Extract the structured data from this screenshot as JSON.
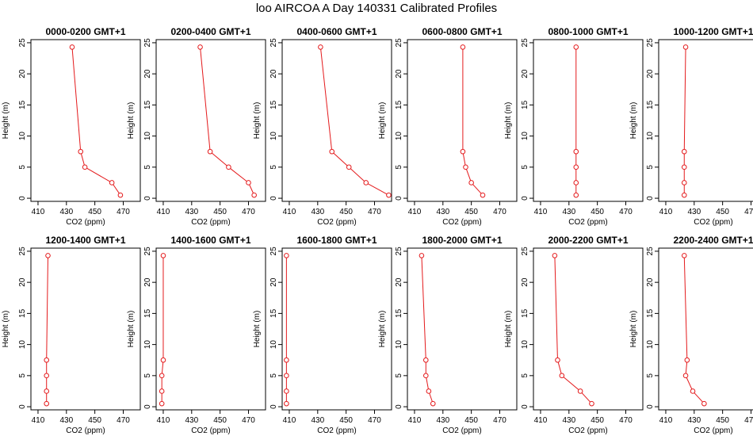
{
  "title": "loo AIRCOA A  Day 140331  Calibrated Profiles",
  "axes": {
    "xlabel": "CO2 (ppm)",
    "ylabel": "Height (m)",
    "xlim": [
      405,
      482
    ],
    "ylim": [
      -0.5,
      25.5
    ],
    "xticks": [
      410,
      430,
      450,
      470
    ],
    "yticks": [
      0,
      5,
      10,
      15,
      20,
      25
    ]
  },
  "colors": {
    "series": "#e41a1c",
    "axis": "#000000"
  },
  "chart_data": [
    {
      "type": "line",
      "title": "0000-0200 GMT+1",
      "x": [
        468,
        462,
        443,
        440,
        434
      ],
      "y": [
        0.5,
        2.5,
        5,
        7.5,
        24.3
      ]
    },
    {
      "type": "line",
      "title": "0200-0400 GMT+1",
      "x": [
        474,
        470,
        456,
        443,
        436
      ],
      "y": [
        0.5,
        2.5,
        5,
        7.5,
        24.3
      ]
    },
    {
      "type": "line",
      "title": "0400-0600 GMT+1",
      "x": [
        480,
        464,
        452,
        440,
        432
      ],
      "y": [
        0.5,
        2.5,
        5,
        7.5,
        24.3
      ]
    },
    {
      "type": "line",
      "title": "0600-0800 GMT+1",
      "x": [
        458,
        450,
        446,
        444,
        444
      ],
      "y": [
        0.5,
        2.5,
        5,
        7.5,
        24.3
      ]
    },
    {
      "type": "line",
      "title": "0800-1000 GMT+1",
      "x": [
        435,
        435,
        435,
        435,
        435
      ],
      "y": [
        0.5,
        2.5,
        5,
        7.5,
        24.3
      ]
    },
    {
      "type": "line",
      "title": "1000-1200 GMT+1",
      "x": [
        423,
        423,
        423,
        423,
        424
      ],
      "y": [
        0.5,
        2.5,
        5,
        7.5,
        24.3
      ]
    },
    {
      "type": "line",
      "title": "1200-1400 GMT+1",
      "x": [
        416,
        416,
        416,
        416,
        417
      ],
      "y": [
        0.5,
        2.5,
        5,
        7.5,
        24.3
      ]
    },
    {
      "type": "line",
      "title": "1400-1600 GMT+1",
      "x": [
        409,
        409,
        409,
        410,
        410
      ],
      "y": [
        0.5,
        2.5,
        5,
        7.5,
        24.3
      ]
    },
    {
      "type": "line",
      "title": "1600-1800 GMT+1",
      "x": [
        408,
        408,
        408,
        408,
        408
      ],
      "y": [
        0.5,
        2.5,
        5,
        7.5,
        24.3
      ]
    },
    {
      "type": "line",
      "title": "1800-2000 GMT+1",
      "x": [
        423,
        420,
        418,
        418,
        415
      ],
      "y": [
        0.5,
        2.5,
        5,
        7.5,
        24.3
      ]
    },
    {
      "type": "line",
      "title": "2000-2200 GMT+1",
      "x": [
        446,
        438,
        425,
        422,
        420
      ],
      "y": [
        0.5,
        2.5,
        5,
        7.5,
        24.3
      ]
    },
    {
      "type": "line",
      "title": "2200-2400 GMT+1",
      "x": [
        437,
        429,
        424,
        425,
        423
      ],
      "y": [
        0.5,
        2.5,
        5,
        7.5,
        24.3
      ]
    }
  ]
}
